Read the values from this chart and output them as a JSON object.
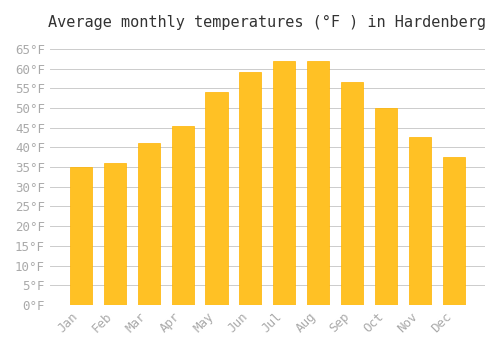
{
  "title": "Average monthly temperatures (°F ) in Hardenberg",
  "months": [
    "Jan",
    "Feb",
    "Mar",
    "Apr",
    "May",
    "Jun",
    "Jul",
    "Aug",
    "Sep",
    "Oct",
    "Nov",
    "Dec"
  ],
  "values": [
    35.0,
    36.0,
    41.0,
    45.5,
    54.0,
    59.0,
    62.0,
    62.0,
    56.5,
    50.0,
    42.5,
    37.5
  ],
  "bar_color": "#FFC125",
  "bar_edge_color": "#FFB300",
  "background_color": "#FFFFFF",
  "grid_color": "#CCCCCC",
  "ylim": [
    0,
    67
  ],
  "yticks": [
    0,
    5,
    10,
    15,
    20,
    25,
    30,
    35,
    40,
    45,
    50,
    55,
    60,
    65
  ],
  "title_fontsize": 11,
  "tick_fontsize": 9,
  "font_color": "#AAAAAA"
}
